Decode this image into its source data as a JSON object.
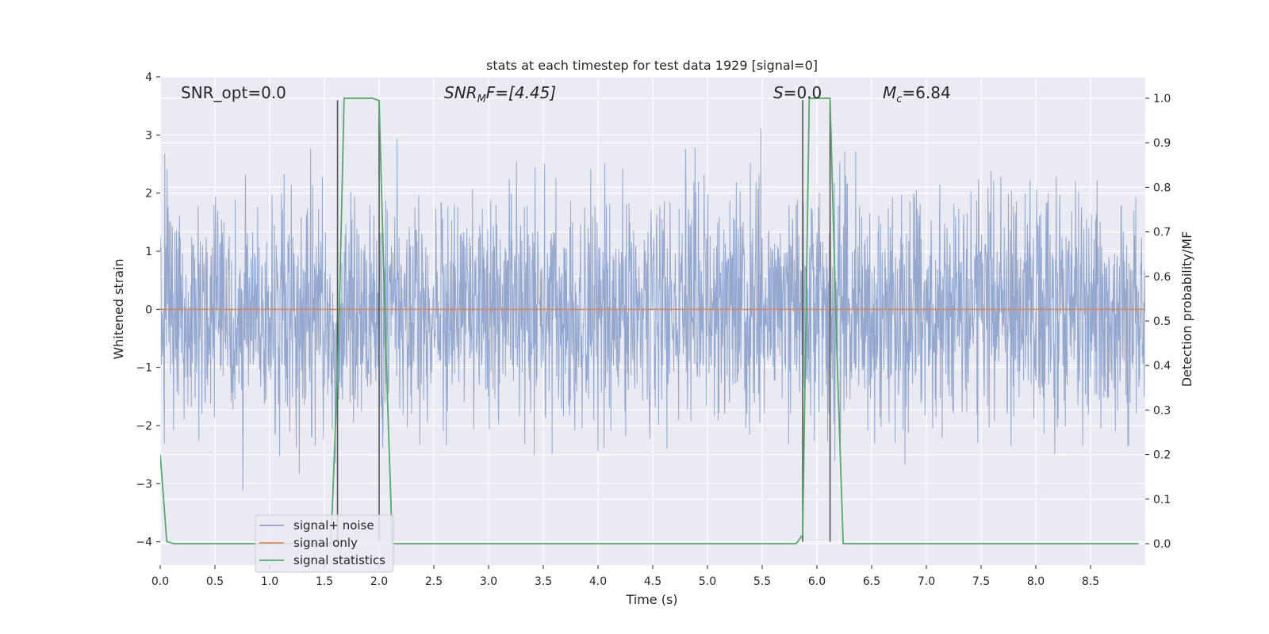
{
  "chart_data": {
    "type": "line",
    "title": "stats at each timestep for test data 1929 [signal=0]",
    "xlabel": "Time (s)",
    "ylabel": "Whitened strain",
    "ylabel_right": "Detection probability/MF",
    "xlim": [
      0,
      9
    ],
    "ylim": [
      -4.4,
      4
    ],
    "ylim_right": [
      -0.048,
      1.048
    ],
    "x_ticks": [
      "0.0",
      "0.5",
      "1.0",
      "1.5",
      "2.0",
      "2.5",
      "3.0",
      "3.5",
      "4.0",
      "4.5",
      "5.0",
      "5.5",
      "6.0",
      "6.5",
      "7.0",
      "7.5",
      "8.0",
      "8.5"
    ],
    "y_ticks": [
      "4",
      "3",
      "2",
      "1",
      "0",
      "−1",
      "−2",
      "−3",
      "−4"
    ],
    "y_ticks_right": [
      "1.0",
      "0.9",
      "0.8",
      "0.7",
      "0.6",
      "0.5",
      "0.4",
      "0.3",
      "0.2",
      "0.1",
      "0.0"
    ],
    "grid": true,
    "legend_position": "lower-left",
    "annotations": {
      "snr_opt": "SNR_opt=0.0",
      "snr_mf_base": "SNR",
      "snr_mf_sub": "M",
      "snr_mf_rest": "F=[4.45]",
      "s_italic": "S",
      "s_rest": "=0.0",
      "mc_base": "M",
      "mc_sub": "c",
      "mc_rest": "=6.84"
    },
    "series": [
      {
        "name": "signal+ noise",
        "color": "#8fa4cc",
        "noise_level": 1.0,
        "noise_envelope": [
          -3.3,
          3.7
        ]
      },
      {
        "name": "signal only",
        "color": "#dd8452",
        "x": [
          0,
          9
        ],
        "y": [
          0,
          0
        ]
      },
      {
        "name": "signal statistics",
        "color": "#55a868",
        "axis": "right",
        "x": [
          0.0,
          0.06,
          0.12,
          1.56,
          1.63,
          1.68,
          1.94,
          2.0,
          2.06,
          2.12,
          5.81,
          5.87,
          5.93,
          6.12,
          6.18,
          6.24,
          8.94
        ],
        "y": [
          0.2,
          0.005,
          0.0,
          0.0,
          0.45,
          1.0,
          1.0,
          0.995,
          0.45,
          0.0,
          0.0,
          0.02,
          1.0,
          1.0,
          0.45,
          0.0,
          0.0
        ]
      }
    ],
    "vertical_markers": {
      "color": "#555555",
      "x": [
        1.62,
        2.0,
        5.87,
        6.12
      ],
      "y_range": [
        -4,
        3.6
      ]
    }
  }
}
